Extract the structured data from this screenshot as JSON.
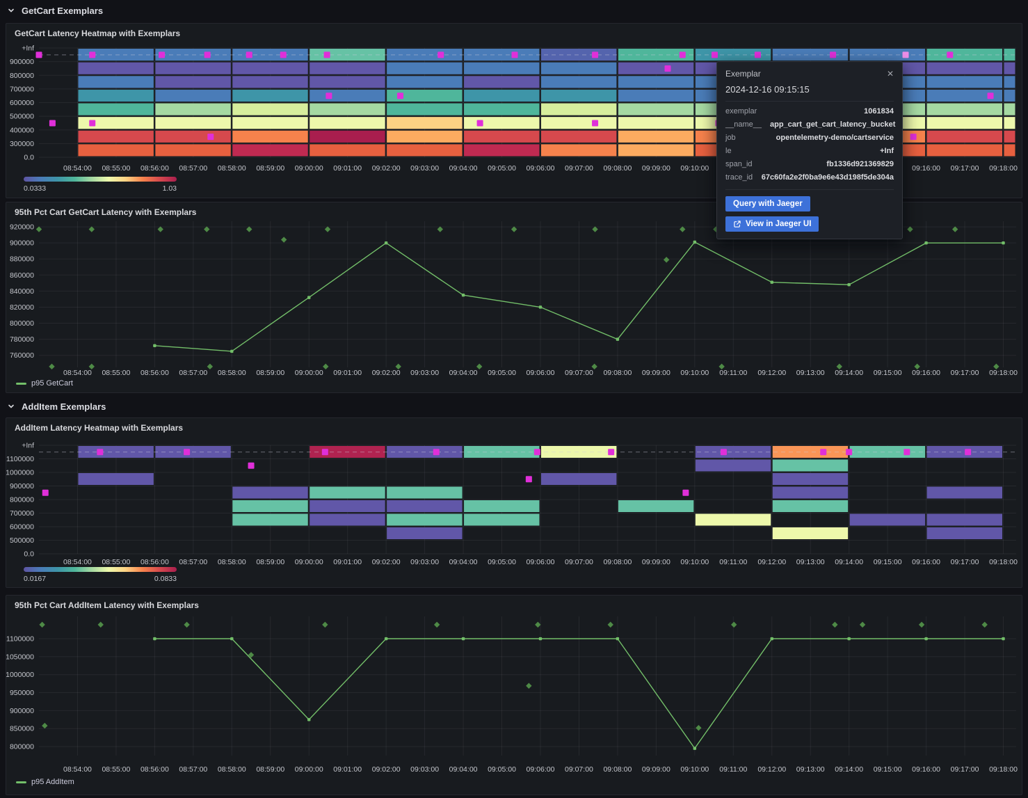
{
  "sections": [
    {
      "title": "GetCart Exemplars"
    },
    {
      "title": "AddItem Exemplars"
    }
  ],
  "time_axis": {
    "start": "08:53:00",
    "end": "09:18:20",
    "tick_labels": [
      "08:54:00",
      "08:55:00",
      "08:56:00",
      "08:57:00",
      "08:58:00",
      "08:59:00",
      "09:00:00",
      "09:01:00",
      "09:02:00",
      "09:03:00",
      "09:04:00",
      "09:05:00",
      "09:06:00",
      "09:07:00",
      "09:08:00",
      "09:09:00",
      "09:10:00",
      "09:11:00",
      "09:12:00",
      "09:13:00",
      "09:14:00",
      "09:15:00",
      "09:16:00",
      "09:17:00",
      "09:18:00"
    ]
  },
  "tooltip": {
    "title": "Exemplar",
    "close_icon": "✕",
    "timestamp": "2024-12-16 09:15:15",
    "fields": [
      {
        "label": "exemplar",
        "value": "1061834"
      },
      {
        "label": "__name__",
        "value": "app_cart_get_cart_latency_bucket"
      },
      {
        "label": "job",
        "value": "opentelemetry-demo/cartservice"
      },
      {
        "label": "le",
        "value": "+Inf"
      },
      {
        "label": "span_id",
        "value": "fb1336d921369829"
      },
      {
        "label": "trace_id",
        "value": "67c60fa2e2f0ba9e6e43d198f5de304a"
      }
    ],
    "buttons": [
      {
        "label": "Query with Jaeger"
      },
      {
        "label": "View in Jaeger UI",
        "icon": "external-link"
      }
    ]
  },
  "colors": {
    "page_bg": "#111217",
    "panel_bg": "#181b1f",
    "grid": "rgba(204,204,220,0.08)",
    "axis_text": "#c4c6cc",
    "series_green": "#73bf69",
    "exemplar_diamond": "#4e8a46",
    "exemplar_magenta": "#e02fd9",
    "exemplar_highlight": "#ef8fe9",
    "button_blue": "#3d71d9",
    "dashed_line": "rgba(204,204,220,0.45)"
  },
  "chart_data": [
    {
      "id": "getcart_heatmap",
      "type": "heatmap",
      "title": "GetCart Latency Heatmap with Exemplars",
      "y_bucket_labels": [
        "+Inf",
        "900000",
        "800000",
        "700000",
        "600000",
        "500000",
        "400000",
        "300000",
        "0.0"
      ],
      "column_span_seconds": 120,
      "scale": {
        "min": "0.0333",
        "max": "1.03"
      },
      "gradient": [
        "#5e54a3",
        "#4a7cb8",
        "#3e95a8",
        "#4fb69b",
        "#a5d9a2",
        "#edf8ab",
        "#fdd283",
        "#f6824c",
        "#d6494d",
        "#a91e4e"
      ],
      "columns": [
        {
          "start": "08:54:00",
          "colors": [
            "#4a7cb8",
            "#6157a8",
            "#4a7cb8",
            "#3e95a8",
            "#4fb69b",
            "#edf8ab",
            "#d6494d",
            "#e7603f"
          ]
        },
        {
          "start": "08:56:00",
          "colors": [
            "#4a7cb8",
            "#6157a8",
            "#6157a8",
            "#4a7cb8",
            "#a5d9a2",
            "#edf8ab",
            "#d6494d",
            "#e7603f"
          ]
        },
        {
          "start": "08:58:00",
          "colors": [
            "#4a7cb8",
            "#6157a8",
            "#6157a8",
            "#3e95a8",
            "#d7ee9d",
            "#edf8ab",
            "#f6824c",
            "#c02a51"
          ]
        },
        {
          "start": "09:00:00",
          "colors": [
            "#66c2a5",
            "#6157a8",
            "#6157a8",
            "#4a7cb8",
            "#a5d9a2",
            "#edf8ab",
            "#a91e4e",
            "#e7603f"
          ]
        },
        {
          "start": "09:02:00",
          "colors": [
            "#4a7cb8",
            "#4a7cb8",
            "#4a7cb8",
            "#4fb69b",
            "#4fb69b",
            "#fdd283",
            "#fcab60",
            "#e7603f"
          ]
        },
        {
          "start": "09:04:00",
          "colors": [
            "#4a7cb8",
            "#4a7cb8",
            "#6157a8",
            "#3e95a8",
            "#4fb69b",
            "#edf8ab",
            "#d6494d",
            "#c02a51"
          ]
        },
        {
          "start": "09:06:00",
          "colors": [
            "#5464ad",
            "#4a7cb8",
            "#4a7cb8",
            "#3e95a8",
            "#d7ee9d",
            "#edf8ab",
            "#d6494d",
            "#f6824c"
          ]
        },
        {
          "start": "09:08:00",
          "colors": [
            "#4fb69b",
            "#6157a8",
            "#4a7cb8",
            "#4a7cb8",
            "#a5d9a2",
            "#edf8ab",
            "#fcab60",
            "#fcab60"
          ]
        },
        {
          "start": "09:10:00",
          "colors": [
            "#3e95a8",
            "#6157a8",
            "#4a7cb8",
            "#4a7cb8",
            "#a5d9a2",
            "#edf8ab",
            "#f6824c",
            "#e7603f"
          ]
        },
        {
          "start": "09:12:00",
          "colors": [
            "#4a7cb8",
            "#6157a8",
            "#4a7cb8",
            "#4a7cb8",
            "#a5d9a2",
            "#edf8ab",
            "#d6494d",
            "#e7603f"
          ]
        },
        {
          "start": "09:14:00",
          "colors": [
            "#4a7cb8",
            "#6157a8",
            "#4a7cb8",
            "#4a7cb8",
            "#a5d9a2",
            "#edf8ab",
            "#f6824c",
            "#e7603f"
          ]
        },
        {
          "start": "09:16:00",
          "colors": [
            "#4fb69b",
            "#6157a8",
            "#4a7cb8",
            "#4a7cb8",
            "#a5d9a2",
            "#edf8ab",
            "#d6494d",
            "#e7603f"
          ]
        },
        {
          "start": "09:18:00",
          "colors": [
            "#4fb69b",
            "#6157a8",
            "#4a7cb8",
            "#4a7cb8",
            "#a5d9a2",
            "#edf8ab",
            "#d6494d",
            "#e7603f"
          ]
        }
      ],
      "exemplars": [
        {
          "t": "08:53:00",
          "row": 0
        },
        {
          "t": "08:54:23",
          "row": 0
        },
        {
          "t": "08:56:11",
          "row": 0
        },
        {
          "t": "08:57:22",
          "row": 0
        },
        {
          "t": "08:58:27",
          "row": 0
        },
        {
          "t": "08:59:20",
          "row": 0
        },
        {
          "t": "09:00:28",
          "row": 0
        },
        {
          "t": "09:03:25",
          "row": 0
        },
        {
          "t": "09:05:20",
          "row": 0
        },
        {
          "t": "09:07:25",
          "row": 0
        },
        {
          "t": "09:09:41",
          "row": 0
        },
        {
          "t": "09:10:31",
          "row": 0
        },
        {
          "t": "09:11:38",
          "row": 0
        },
        {
          "t": "09:13:35",
          "row": 0
        },
        {
          "t": "09:15:28",
          "row": 0,
          "highlight": true
        },
        {
          "t": "09:16:37",
          "row": 0
        },
        {
          "t": "09:09:18",
          "row": 1
        },
        {
          "t": "09:00:31",
          "row": 3
        },
        {
          "t": "09:02:22",
          "row": 3
        },
        {
          "t": "09:17:40",
          "row": 3
        },
        {
          "t": "08:53:21",
          "row": 5
        },
        {
          "t": "08:54:23",
          "row": 5
        },
        {
          "t": "09:04:26",
          "row": 5
        },
        {
          "t": "09:07:25",
          "row": 5
        },
        {
          "t": "09:10:37",
          "row": 5
        },
        {
          "t": "08:57:27",
          "row": 6
        },
        {
          "t": "09:15:40",
          "row": 6
        }
      ]
    },
    {
      "id": "getcart_line",
      "type": "line",
      "title": "95th Pct Cart GetCart Latency with Exemplars",
      "series_name": "p95 GetCart",
      "y_ticks": [
        920000,
        900000,
        880000,
        860000,
        840000,
        820000,
        800000,
        780000,
        760000
      ],
      "y_domain": [
        745000,
        927000
      ],
      "points": [
        [
          "08:56:00",
          772000
        ],
        [
          "08:58:00",
          765000
        ],
        [
          "09:00:00",
          832000
        ],
        [
          "09:02:00",
          900000
        ],
        [
          "09:04:00",
          835000
        ],
        [
          "09:06:00",
          820000
        ],
        [
          "09:08:00",
          780000
        ],
        [
          "09:10:00",
          901000
        ],
        [
          "09:12:00",
          851000
        ],
        [
          "09:14:00",
          848000
        ],
        [
          "09:16:00",
          900000
        ],
        [
          "09:18:00",
          900000
        ]
      ],
      "exemplars": [
        [
          "08:53:00",
          917000
        ],
        [
          "08:54:22",
          917000
        ],
        [
          "08:56:09",
          917000
        ],
        [
          "08:57:21",
          917000
        ],
        [
          "08:58:27",
          917000
        ],
        [
          "09:00:29",
          917000
        ],
        [
          "09:03:24",
          917000
        ],
        [
          "09:05:19",
          917000
        ],
        [
          "09:07:25",
          917000
        ],
        [
          "09:09:41",
          917000
        ],
        [
          "09:10:33",
          917000
        ],
        [
          "09:15:35",
          917000
        ],
        [
          "09:16:45",
          917000
        ],
        [
          "08:59:21",
          904000
        ],
        [
          "09:09:16",
          879000
        ],
        [
          "08:53:20",
          746000
        ],
        [
          "08:54:22",
          746000
        ],
        [
          "08:57:26",
          746000
        ],
        [
          "09:00:26",
          746000
        ],
        [
          "09:02:19",
          746000
        ],
        [
          "09:04:25",
          746000
        ],
        [
          "09:07:24",
          746000
        ],
        [
          "09:10:42",
          746000
        ],
        [
          "09:13:45",
          746000
        ],
        [
          "09:15:46",
          746000
        ],
        [
          "09:17:49",
          746000
        ]
      ]
    },
    {
      "id": "additem_heatmap",
      "type": "heatmap",
      "title": "AddItem Latency Heatmap with Exemplars",
      "y_bucket_labels": [
        "+Inf",
        "1100000",
        "1000000",
        "900000",
        "800000",
        "700000",
        "600000",
        "500000",
        "0.0"
      ],
      "column_span_seconds": 120,
      "scale": {
        "min": "0.0167",
        "max": "0.0833"
      },
      "gradient": [
        "#5e54a3",
        "#4a7cb8",
        "#3e95a8",
        "#4fb69b",
        "#a5d9a2",
        "#edf8ab",
        "#fdd283",
        "#f6824c",
        "#d6494d",
        "#a91e4e"
      ],
      "columns": [
        {
          "start": "08:54:00",
          "colors": [
            "#6157a8",
            null,
            "#6157a8",
            null,
            null,
            null,
            null,
            null
          ]
        },
        {
          "start": "08:56:00",
          "colors": [
            "#6157a8",
            null,
            null,
            null,
            null,
            null,
            null,
            null
          ]
        },
        {
          "start": "08:58:00",
          "colors": [
            null,
            null,
            null,
            "#6157a8",
            "#66c2a5",
            "#66c2a5",
            null,
            null
          ]
        },
        {
          "start": "09:00:00",
          "colors": [
            "#b02350",
            null,
            null,
            "#66c2a5",
            "#6157a8",
            "#6157a8",
            null,
            null
          ]
        },
        {
          "start": "09:02:00",
          "colors": [
            "#6157a8",
            null,
            null,
            "#66c2a5",
            "#6157a8",
            "#66c2a5",
            "#6157a8",
            null
          ]
        },
        {
          "start": "09:04:00",
          "colors": [
            "#66c2a5",
            null,
            null,
            null,
            "#66c2a5",
            "#66c2a5",
            null,
            null
          ]
        },
        {
          "start": "09:06:00",
          "colors": [
            "#edf8ab",
            null,
            "#6157a8",
            null,
            null,
            null,
            null,
            null
          ]
        },
        {
          "start": "09:08:00",
          "colors": [
            null,
            null,
            null,
            null,
            "#66c2a5",
            null,
            null,
            null
          ]
        },
        {
          "start": "09:10:00",
          "colors": [
            "#6157a8",
            "#6157a8",
            null,
            null,
            null,
            "#edf8ab",
            null,
            null
          ]
        },
        {
          "start": "09:12:00",
          "colors": [
            "#f99557",
            "#66c2a5",
            "#6157a8",
            "#6157a8",
            "#66c2a5",
            null,
            "#edf8ab",
            null
          ]
        },
        {
          "start": "09:14:00",
          "colors": [
            "#66c2a5",
            null,
            null,
            null,
            null,
            "#6157a8",
            null,
            null
          ]
        },
        {
          "start": "09:16:00",
          "colors": [
            "#6157a8",
            null,
            null,
            "#6157a8",
            null,
            "#6157a8",
            "#6157a8",
            null
          ]
        }
      ],
      "exemplars": [
        {
          "t": "08:53:10",
          "row": 3
        },
        {
          "t": "08:54:35",
          "row": 0
        },
        {
          "t": "08:56:50",
          "row": 0
        },
        {
          "t": "08:58:30",
          "row": 1
        },
        {
          "t": "09:00:25",
          "row": 0
        },
        {
          "t": "09:03:18",
          "row": 0
        },
        {
          "t": "09:05:42",
          "row": 2
        },
        {
          "t": "09:05:55",
          "row": 0
        },
        {
          "t": "09:07:50",
          "row": 0
        },
        {
          "t": "09:09:46",
          "row": 3
        },
        {
          "t": "09:10:45",
          "row": 0
        },
        {
          "t": "09:13:20",
          "row": 0
        },
        {
          "t": "09:14:00",
          "row": 0
        },
        {
          "t": "09:15:30",
          "row": 0
        },
        {
          "t": "09:17:05",
          "row": 0
        }
      ]
    },
    {
      "id": "additem_line",
      "type": "line",
      "title": "95th Pct Cart AddItem Latency with Exemplars",
      "series_name": "p95 AddItem",
      "y_ticks": [
        1100000,
        1050000,
        1000000,
        950000,
        900000,
        850000,
        800000
      ],
      "y_domain": [
        775000,
        1162000
      ],
      "points": [
        [
          "08:56:00",
          1100000
        ],
        [
          "08:58:00",
          1100000
        ],
        [
          "09:00:00",
          875000
        ],
        [
          "09:02:00",
          1100000
        ],
        [
          "09:04:00",
          1100000
        ],
        [
          "09:06:00",
          1100000
        ],
        [
          "09:08:00",
          1100000
        ],
        [
          "09:10:00",
          795000
        ],
        [
          "09:12:00",
          1100000
        ],
        [
          "09:14:00",
          1100000
        ],
        [
          "09:16:00",
          1100000
        ],
        [
          "09:18:00",
          1100000
        ]
      ],
      "exemplars": [
        [
          "08:53:05",
          1139000
        ],
        [
          "08:54:36",
          1139000
        ],
        [
          "08:56:50",
          1139000
        ],
        [
          "09:00:25",
          1139000
        ],
        [
          "09:03:19",
          1139000
        ],
        [
          "09:05:56",
          1139000
        ],
        [
          "09:07:49",
          1139000
        ],
        [
          "09:11:01",
          1139000
        ],
        [
          "09:13:38",
          1139000
        ],
        [
          "09:14:21",
          1139000
        ],
        [
          "09:15:53",
          1139000
        ],
        [
          "09:17:31",
          1139000
        ],
        [
          "08:53:09",
          858000
        ],
        [
          "08:58:30",
          1055000
        ],
        [
          "09:05:42",
          969000
        ],
        [
          "09:10:06",
          852000
        ]
      ]
    }
  ]
}
